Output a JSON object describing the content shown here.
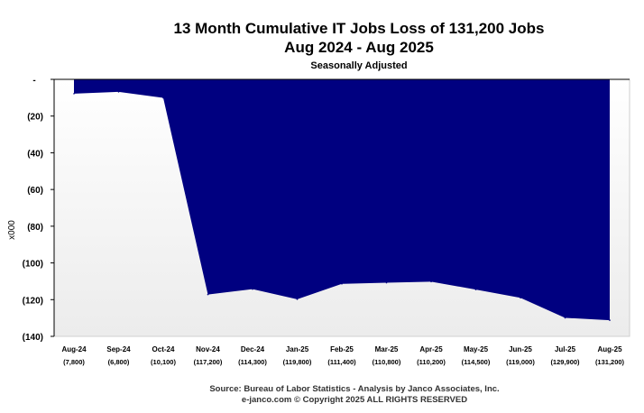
{
  "chart_data": {
    "type": "area",
    "title": "13 Month Cumulative IT Jobs Loss of 131,200 Jobs",
    "subtitle_line2": "Aug 2024 - Aug 2025",
    "subtitle_line3": "Seasonally  Adjusted",
    "ylabel": "x000",
    "ylim": [
      -140,
      0
    ],
    "yticks": [
      "-",
      "(20)",
      "(40)",
      "(60)",
      "(80)",
      "(100)",
      "(120)",
      "(140)"
    ],
    "ytick_values": [
      0,
      -20,
      -40,
      -60,
      -80,
      -100,
      -120,
      -140
    ],
    "categories": [
      "Aug-24",
      "Sep-24",
      "Oct-24",
      "Nov-24",
      "Dec-24",
      "Jan-25",
      "Feb-25",
      "Mar-25",
      "Apr-25",
      "May-25",
      "Jun-25",
      "Jul-25",
      "Aug-25"
    ],
    "category_value_labels": [
      "(7,800)",
      "(6,800)",
      "(10,100)",
      "(117,200)",
      "(114,300)",
      "(119,800)",
      "(111,400)",
      "(110,800)",
      "(110,200)",
      "(114,500)",
      "(119,000)",
      "(129,900)",
      "(131,200)"
    ],
    "values": [
      -7.8,
      -6.8,
      -10.1,
      -117.2,
      -114.3,
      -119.8,
      -111.4,
      -110.8,
      -110.2,
      -114.5,
      -119.0,
      -129.9,
      -131.2
    ],
    "grid": false,
    "colors": {
      "area": "#000080",
      "background": "#ffffff",
      "axis": "#000000"
    },
    "source_line1": "Source: Bureau of Labor Statistics - Analysis by Janco Associates, Inc.",
    "source_line2": "e-janco.com © Copyright 2025  ALL RIGHTS RESERVED"
  }
}
